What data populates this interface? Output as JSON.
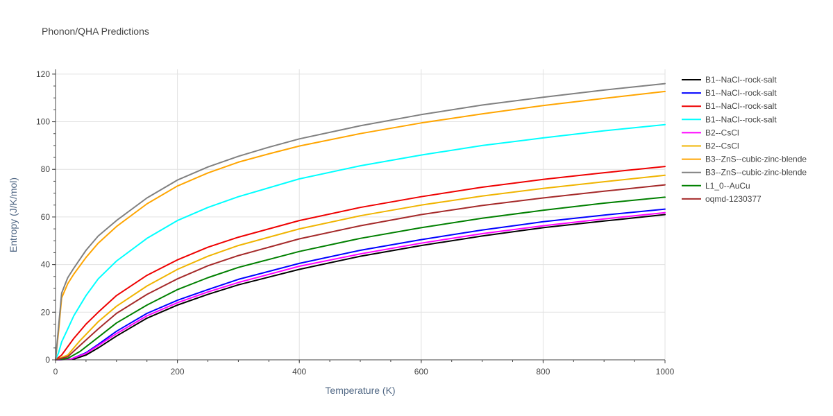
{
  "chart_data": {
    "type": "line",
    "title": "Phonon/QHA Predictions",
    "xlabel": "Temperature (K)",
    "ylabel": "Entropy (J/K/mol)",
    "xlim": [
      0,
      1000
    ],
    "ylim": [
      0,
      122
    ],
    "xticks": [
      0,
      200,
      400,
      600,
      800,
      1000
    ],
    "yticks": [
      0,
      20,
      40,
      60,
      80,
      100,
      120
    ],
    "grid": true,
    "legend_position": "right",
    "series": [
      {
        "name": "B1--NaCl--rock-salt",
        "color": "#000000",
        "points": [
          [
            0,
            0
          ],
          [
            30,
            0.3
          ],
          [
            50,
            2
          ],
          [
            70,
            5
          ],
          [
            100,
            10
          ],
          [
            150,
            17.5
          ],
          [
            200,
            23
          ],
          [
            250,
            27.5
          ],
          [
            300,
            31.5
          ],
          [
            400,
            38
          ],
          [
            500,
            43.5
          ],
          [
            600,
            48
          ],
          [
            700,
            52
          ],
          [
            800,
            55.5
          ],
          [
            900,
            58.3
          ],
          [
            1000,
            61
          ]
        ]
      },
      {
        "name": "B1--NaCl--rock-salt",
        "color": "#0000ff",
        "points": [
          [
            0,
            0
          ],
          [
            25,
            0.3
          ],
          [
            50,
            3
          ],
          [
            70,
            6.5
          ],
          [
            100,
            12
          ],
          [
            150,
            19.5
          ],
          [
            200,
            25
          ],
          [
            250,
            29.5
          ],
          [
            300,
            33.8
          ],
          [
            400,
            40.5
          ],
          [
            500,
            46
          ],
          [
            600,
            50.5
          ],
          [
            700,
            54.5
          ],
          [
            800,
            58
          ],
          [
            900,
            60.8
          ],
          [
            1000,
            63.3
          ]
        ]
      },
      {
        "name": "B1--NaCl--rock-salt",
        "color": "#ee0000",
        "points": [
          [
            0,
            0
          ],
          [
            10,
            2
          ],
          [
            30,
            9
          ],
          [
            50,
            15
          ],
          [
            70,
            20
          ],
          [
            100,
            27
          ],
          [
            150,
            35.5
          ],
          [
            200,
            42
          ],
          [
            250,
            47.3
          ],
          [
            300,
            51.5
          ],
          [
            400,
            58.5
          ],
          [
            500,
            64
          ],
          [
            600,
            68.5
          ],
          [
            700,
            72.5
          ],
          [
            800,
            75.8
          ],
          [
            900,
            78.6
          ],
          [
            1000,
            81.2
          ]
        ]
      },
      {
        "name": "B1--NaCl--rock-salt",
        "color": "#00ffff",
        "points": [
          [
            0,
            0
          ],
          [
            5,
            3
          ],
          [
            10,
            7.5
          ],
          [
            20,
            13
          ],
          [
            30,
            18.5
          ],
          [
            50,
            27
          ],
          [
            70,
            34
          ],
          [
            100,
            41.5
          ],
          [
            150,
            51
          ],
          [
            200,
            58.5
          ],
          [
            250,
            64
          ],
          [
            300,
            68.5
          ],
          [
            400,
            76
          ],
          [
            500,
            81.5
          ],
          [
            600,
            86
          ],
          [
            700,
            90
          ],
          [
            800,
            93.2
          ],
          [
            900,
            96.2
          ],
          [
            1000,
            98.8
          ]
        ]
      },
      {
        "name": "B2--CsCl",
        "color": "#ff00ff",
        "points": [
          [
            0,
            0
          ],
          [
            25,
            0.3
          ],
          [
            50,
            2.7
          ],
          [
            70,
            6
          ],
          [
            100,
            11
          ],
          [
            150,
            18.5
          ],
          [
            200,
            24
          ],
          [
            250,
            28.5
          ],
          [
            300,
            32.5
          ],
          [
            400,
            39.3
          ],
          [
            500,
            44.5
          ],
          [
            600,
            49
          ],
          [
            700,
            53
          ],
          [
            800,
            56.3
          ],
          [
            900,
            59.2
          ],
          [
            1000,
            61.8
          ]
        ]
      },
      {
        "name": "B2--CsCl",
        "color": "#f0b400",
        "points": [
          [
            0,
            0
          ],
          [
            20,
            2
          ],
          [
            40,
            8
          ],
          [
            70,
            16
          ],
          [
            100,
            22.5
          ],
          [
            150,
            31
          ],
          [
            200,
            38
          ],
          [
            250,
            43.5
          ],
          [
            300,
            48
          ],
          [
            400,
            55
          ],
          [
            500,
            60.5
          ],
          [
            600,
            65
          ],
          [
            700,
            68.8
          ],
          [
            800,
            72
          ],
          [
            900,
            74.8
          ],
          [
            1000,
            77.5
          ]
        ]
      },
      {
        "name": "B3--ZnS--cubic-zinc-blende",
        "color": "#ffa500",
        "points": [
          [
            0,
            0
          ],
          [
            5,
            12
          ],
          [
            10,
            26
          ],
          [
            20,
            32
          ],
          [
            30,
            36
          ],
          [
            50,
            43
          ],
          [
            70,
            49
          ],
          [
            100,
            56
          ],
          [
            150,
            65.5
          ],
          [
            200,
            73
          ],
          [
            250,
            78.5
          ],
          [
            300,
            83
          ],
          [
            350,
            86.5
          ],
          [
            400,
            89.8
          ],
          [
            500,
            95
          ],
          [
            600,
            99.5
          ],
          [
            700,
            103.3
          ],
          [
            800,
            106.8
          ],
          [
            900,
            109.8
          ],
          [
            1000,
            112.7
          ]
        ]
      },
      {
        "name": "B3--ZnS--cubic-zinc-blende",
        "color": "#808080",
        "points": [
          [
            0,
            0
          ],
          [
            5,
            14
          ],
          [
            10,
            28
          ],
          [
            20,
            34.5
          ],
          [
            30,
            38.5
          ],
          [
            50,
            46
          ],
          [
            70,
            52
          ],
          [
            100,
            58.5
          ],
          [
            150,
            68
          ],
          [
            200,
            75.5
          ],
          [
            250,
            81
          ],
          [
            300,
            85.5
          ],
          [
            350,
            89.3
          ],
          [
            400,
            92.8
          ],
          [
            500,
            98.3
          ],
          [
            600,
            103
          ],
          [
            700,
            107
          ],
          [
            800,
            110.3
          ],
          [
            900,
            113.3
          ],
          [
            1000,
            116
          ]
        ]
      },
      {
        "name": "L1_0--AuCu",
        "color": "#008000",
        "points": [
          [
            0,
            0
          ],
          [
            20,
            0.6
          ],
          [
            40,
            3.5
          ],
          [
            70,
            9.5
          ],
          [
            100,
            15.5
          ],
          [
            150,
            23
          ],
          [
            200,
            29.5
          ],
          [
            250,
            34.5
          ],
          [
            300,
            38.8
          ],
          [
            400,
            45.5
          ],
          [
            500,
            51
          ],
          [
            600,
            55.5
          ],
          [
            700,
            59.5
          ],
          [
            800,
            62.8
          ],
          [
            900,
            65.8
          ],
          [
            1000,
            68.3
          ]
        ]
      },
      {
        "name": "oqmd-1230377",
        "color": "#a52a2a",
        "points": [
          [
            0,
            0
          ],
          [
            20,
            1.3
          ],
          [
            40,
            6
          ],
          [
            70,
            13
          ],
          [
            100,
            19.5
          ],
          [
            150,
            27.5
          ],
          [
            200,
            34
          ],
          [
            250,
            39.5
          ],
          [
            300,
            43.8
          ],
          [
            400,
            50.8
          ],
          [
            500,
            56.3
          ],
          [
            600,
            61
          ],
          [
            700,
            64.8
          ],
          [
            800,
            68
          ],
          [
            900,
            70.8
          ],
          [
            1000,
            73.5
          ]
        ]
      }
    ]
  }
}
